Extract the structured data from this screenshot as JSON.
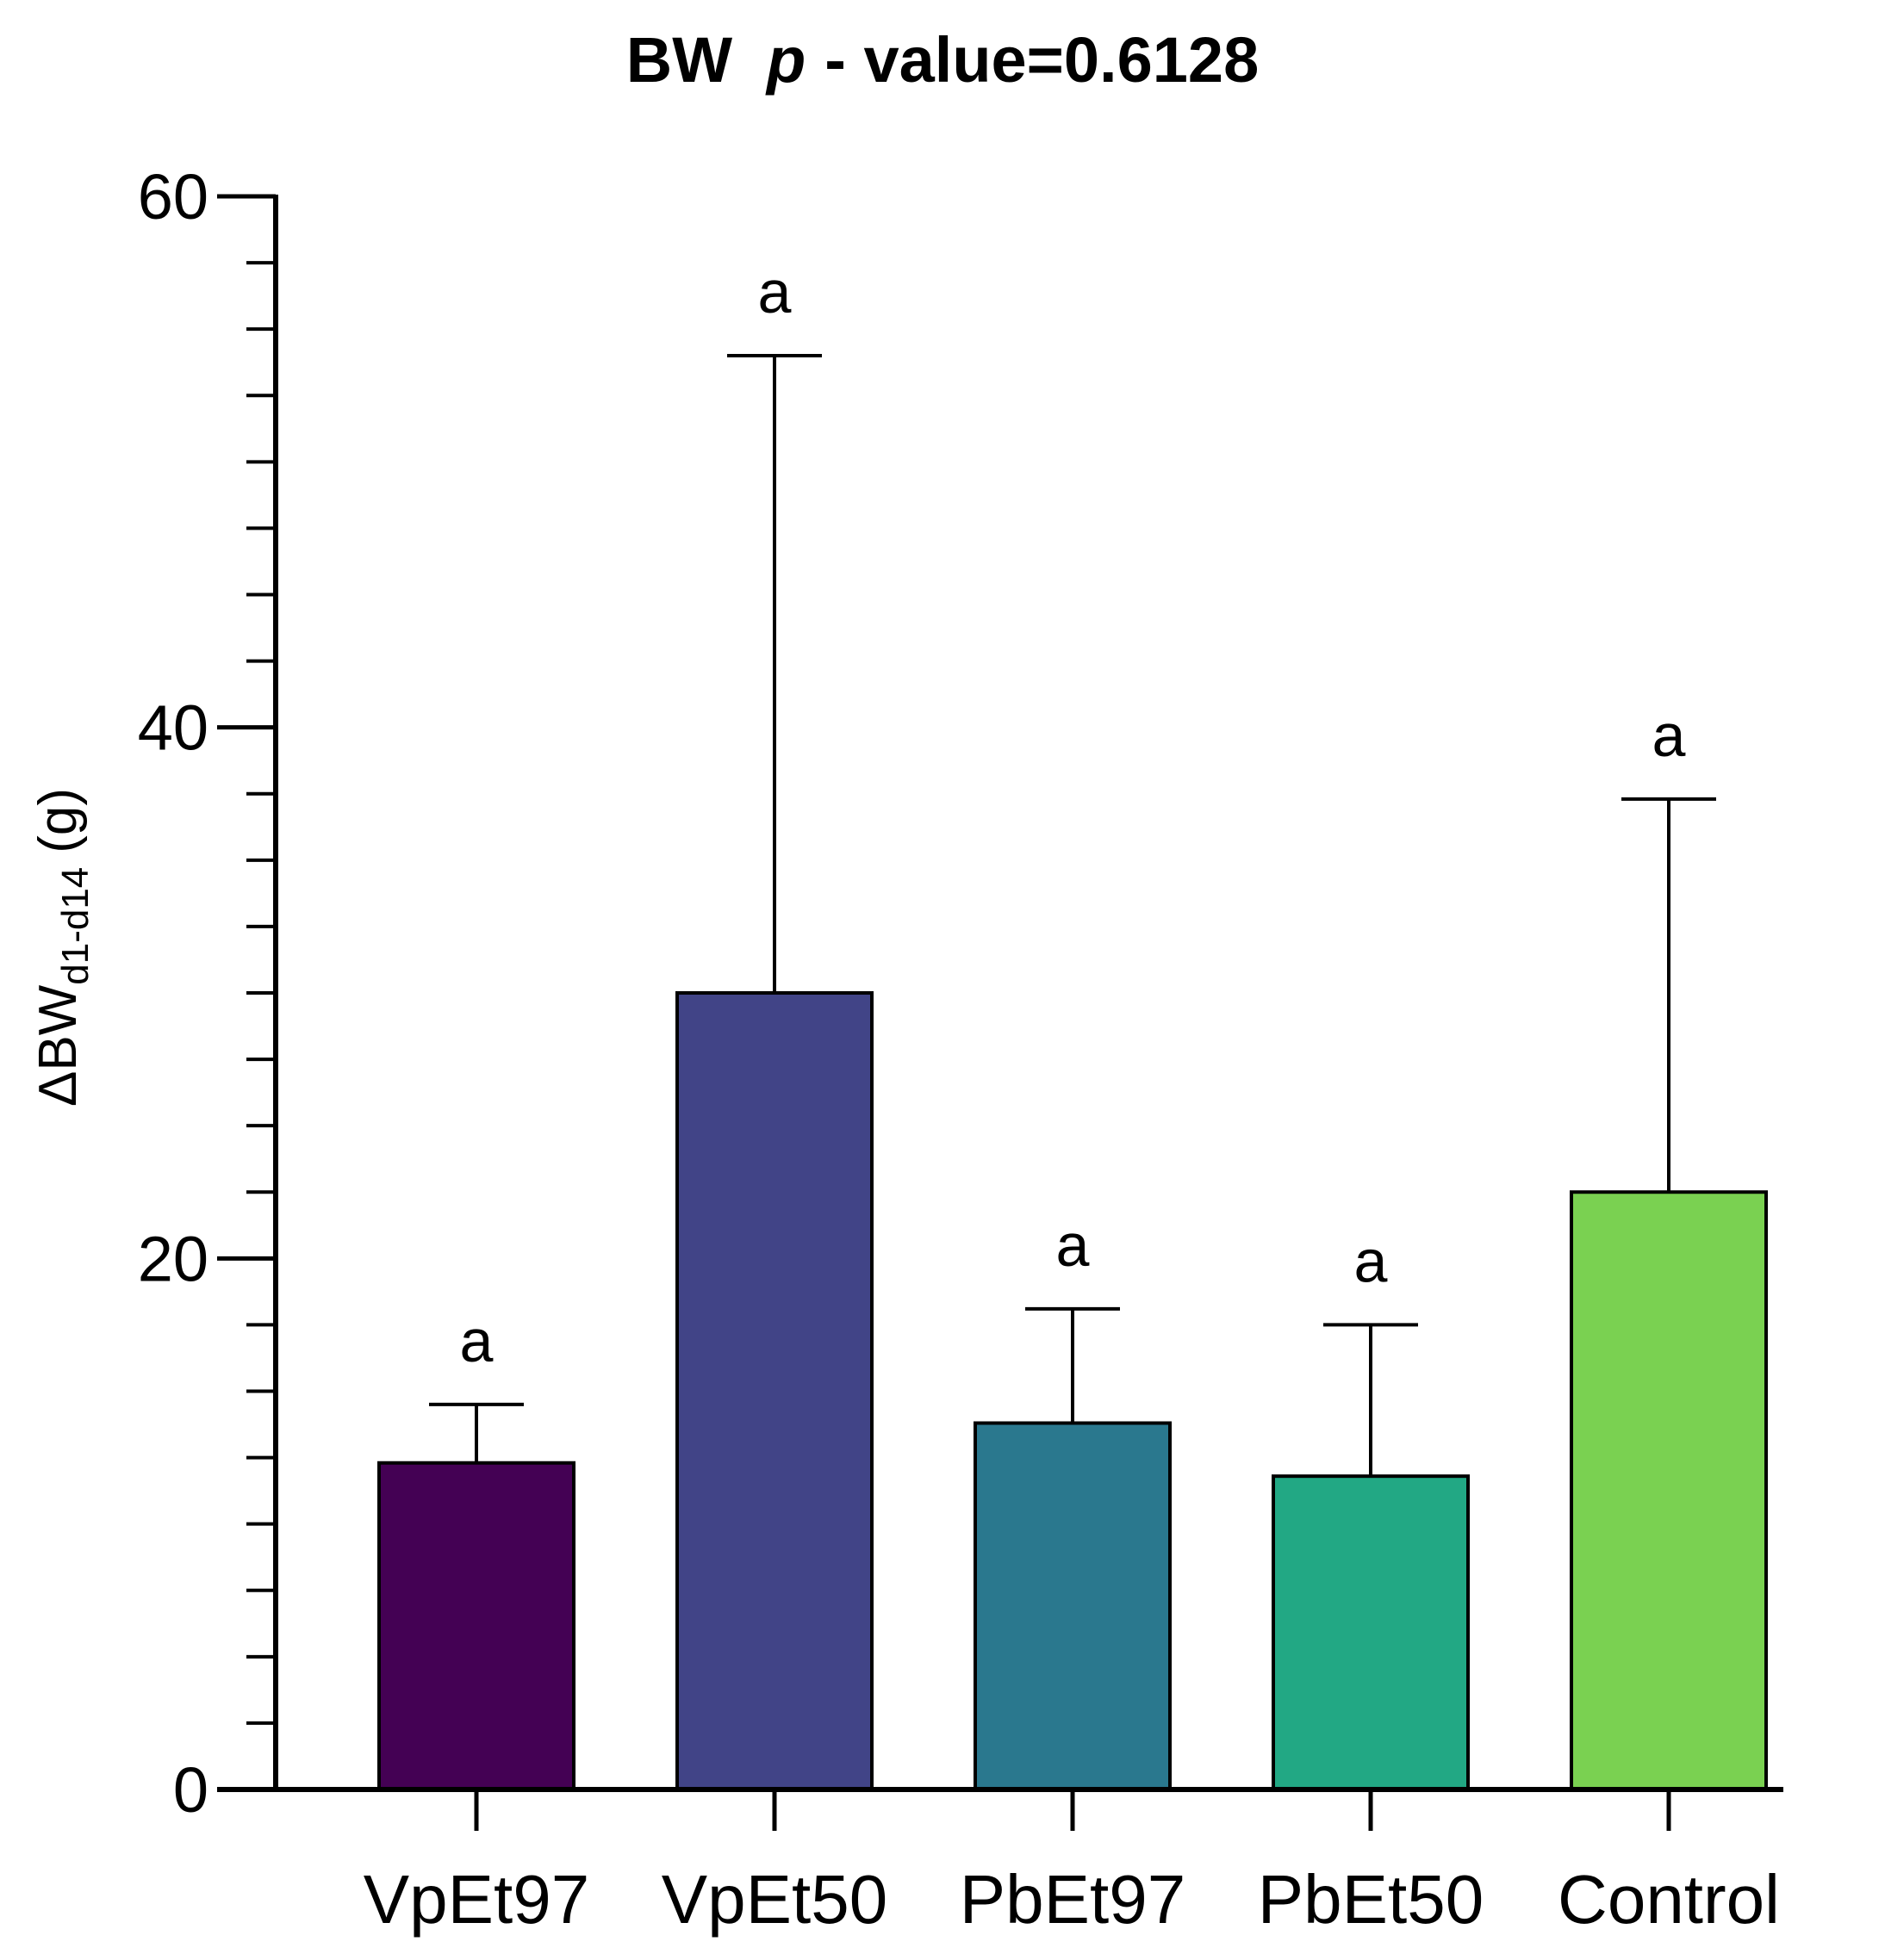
{
  "chart_data": {
    "type": "bar",
    "title_main": "BW",
    "title_p": "p",
    "title_rest": "- value=0.6128",
    "ylabel_delta": "Δ",
    "ylabel_main": "BW",
    "ylabel_sub": "d1-d14",
    "ylabel_unit": "(g)",
    "xlabel": "",
    "ylim": [
      0,
      60
    ],
    "yticks": [
      0,
      20,
      40,
      60
    ],
    "ytick_labels": [
      "0",
      "20",
      "40",
      "60"
    ],
    "minor_tick_step": 2.5,
    "categories": [
      "VpEt97",
      "VpEt50",
      "PbEt97",
      "PbEt50",
      "Control"
    ],
    "values": [
      12.3,
      30.0,
      13.8,
      11.8,
      22.5
    ],
    "error_upper": [
      14.5,
      54.0,
      18.1,
      17.5,
      37.3
    ],
    "significance": [
      "a",
      "a",
      "a",
      "a",
      "a"
    ],
    "colors": [
      "#440154",
      "#414487",
      "#2a788e",
      "#22a884",
      "#7ad151"
    ]
  }
}
